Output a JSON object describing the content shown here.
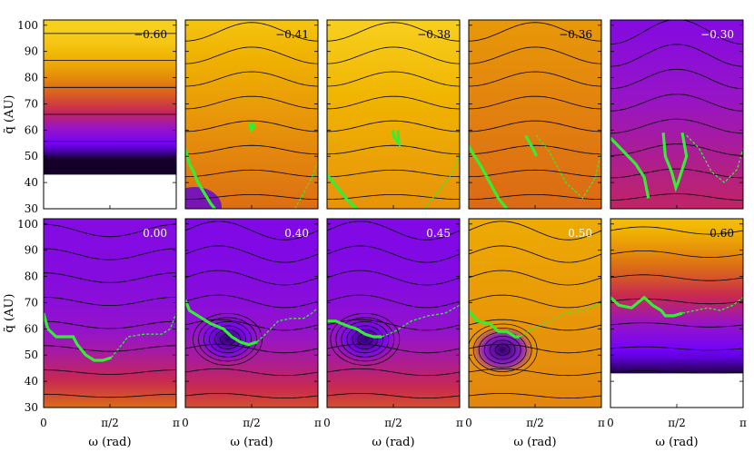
{
  "chart_data": {
    "type": "heatmap",
    "xlabel": "ω (rad)",
    "ylabel": "q̃ (AU)",
    "xticks": [
      "0",
      "π/2",
      "π"
    ],
    "yticks": [
      30,
      40,
      50,
      60,
      70,
      80,
      90,
      100
    ],
    "xlim": [
      0,
      3.1416
    ],
    "ylim": [
      30,
      102
    ],
    "panels": [
      {
        "label": "−0.60",
        "style": "flat",
        "center": 0,
        "qmin": 43,
        "label_color": "#000000",
        "green_solid": [],
        "green_dashed": []
      },
      {
        "label": "−0.41",
        "style": "sym",
        "center": 1.5708,
        "label_color": "#000000",
        "green_solid": [
          [
            0.0,
            53
          ],
          [
            0.1,
            47
          ],
          [
            0.2,
            44
          ],
          [
            0.3,
            40
          ],
          [
            0.45,
            36
          ],
          [
            0.6,
            32
          ],
          [
            0.7,
            30
          ]
        ],
        "green_solid_b": [
          [
            1.52,
            63
          ],
          [
            1.56,
            60
          ],
          [
            1.62,
            61
          ],
          [
            1.6,
            63
          ]
        ],
        "green_dashed": [
          [
            2.6,
            30
          ],
          [
            2.8,
            36
          ],
          [
            3.0,
            42
          ],
          [
            3.14,
            48
          ]
        ]
      },
      {
        "label": "−0.38",
        "style": "sym",
        "center": 1.5708,
        "label_color": "#000000",
        "green_solid": [
          [
            0.0,
            43
          ],
          [
            0.15,
            40
          ],
          [
            0.3,
            37
          ],
          [
            0.5,
            33
          ],
          [
            0.7,
            30
          ]
        ],
        "green_solid_b": [
          [
            1.55,
            60
          ],
          [
            1.6,
            57
          ],
          [
            1.7,
            55
          ],
          [
            1.68,
            60
          ]
        ],
        "green_dashed": [
          [
            2.3,
            30
          ],
          [
            2.6,
            36
          ],
          [
            2.9,
            42
          ],
          [
            3.14,
            50
          ]
        ]
      },
      {
        "label": "−0.36",
        "style": "sym",
        "center": 1.5708,
        "label_color": "#000000",
        "green_solid": [
          [
            0.0,
            54
          ],
          [
            0.1,
            51
          ],
          [
            0.3,
            46
          ],
          [
            0.5,
            40
          ],
          [
            0.7,
            34
          ],
          [
            0.9,
            30
          ]
        ],
        "green_solid_b": [
          [
            1.35,
            58
          ],
          [
            1.45,
            55
          ],
          [
            1.55,
            52
          ],
          [
            1.6,
            50
          ]
        ],
        "green_dashed": [
          [
            1.6,
            58
          ],
          [
            1.9,
            52
          ],
          [
            2.3,
            40
          ],
          [
            2.7,
            34
          ],
          [
            3.0,
            42
          ],
          [
            3.14,
            52
          ]
        ]
      },
      {
        "label": "−0.30",
        "style": "sym",
        "center": 1.5708,
        "label_color": "#ffffff",
        "green_solid": [
          [
            0.0,
            57
          ],
          [
            0.3,
            52
          ],
          [
            0.6,
            47
          ],
          [
            0.8,
            42
          ],
          [
            0.9,
            34
          ]
        ],
        "green_solid_b": [
          [
            1.25,
            59
          ],
          [
            1.3,
            50
          ],
          [
            1.45,
            44
          ],
          [
            1.55,
            38
          ],
          [
            1.6,
            40
          ],
          [
            1.7,
            45
          ],
          [
            1.8,
            50
          ],
          [
            1.7,
            59
          ]
        ],
        "green_dashed": [
          [
            1.8,
            58
          ],
          [
            2.1,
            53
          ],
          [
            2.4,
            44
          ],
          [
            2.7,
            40
          ],
          [
            3.0,
            45
          ],
          [
            3.14,
            53
          ]
        ]
      },
      {
        "label": "0.00",
        "style": "deep",
        "center": 1.5708,
        "label_color": "#ffffff",
        "green_solid": [
          [
            0.0,
            66
          ],
          [
            0.1,
            60
          ],
          [
            0.3,
            57
          ],
          [
            0.7,
            57
          ],
          [
            0.8,
            54
          ],
          [
            1.0,
            50
          ],
          [
            1.2,
            48
          ],
          [
            1.4,
            48
          ],
          [
            1.6,
            49
          ]
        ],
        "green_dashed": [
          [
            1.6,
            49
          ],
          [
            1.8,
            53
          ],
          [
            2.0,
            57
          ],
          [
            2.4,
            58
          ],
          [
            2.8,
            58
          ],
          [
            3.0,
            60
          ],
          [
            3.14,
            66
          ]
        ]
      },
      {
        "label": "0.40",
        "style": "vortex",
        "center": 1.0,
        "label_color": "#ffffff",
        "green_solid": [
          [
            0.0,
            71
          ],
          [
            0.1,
            67
          ],
          [
            0.4,
            64
          ],
          [
            0.6,
            62
          ],
          [
            0.9,
            60
          ],
          [
            1.1,
            57
          ],
          [
            1.3,
            55
          ],
          [
            1.5,
            54
          ],
          [
            1.7,
            55
          ]
        ],
        "green_dashed": [
          [
            1.7,
            55
          ],
          [
            1.9,
            58
          ],
          [
            2.2,
            63
          ],
          [
            2.5,
            64
          ],
          [
            2.8,
            64
          ],
          [
            3.0,
            66
          ],
          [
            3.14,
            68
          ]
        ]
      },
      {
        "label": "0.45",
        "style": "vortex",
        "center": 0.9,
        "label_color": "#ffffff",
        "green_solid": [
          [
            0.0,
            63
          ],
          [
            0.2,
            63
          ],
          [
            0.5,
            61
          ],
          [
            0.7,
            60
          ],
          [
            0.9,
            58
          ],
          [
            1.1,
            57
          ],
          [
            1.3,
            57
          ]
        ],
        "green_dashed": [
          [
            1.3,
            57
          ],
          [
            1.6,
            59
          ],
          [
            2.0,
            63
          ],
          [
            2.4,
            65
          ],
          [
            2.8,
            66
          ],
          [
            3.14,
            69
          ]
        ]
      },
      {
        "label": "0.50",
        "style": "vortex_orange",
        "center": 0.8,
        "label_color": "#ffffff",
        "green_solid": [
          [
            0.0,
            67
          ],
          [
            0.2,
            63
          ],
          [
            0.5,
            62
          ],
          [
            0.7,
            59
          ],
          [
            0.9,
            59
          ],
          [
            1.1,
            57
          ],
          [
            1.2,
            57
          ]
        ],
        "green_dashed": [
          [
            1.2,
            57
          ],
          [
            1.5,
            60
          ],
          [
            1.9,
            63
          ],
          [
            2.3,
            66
          ],
          [
            2.7,
            67
          ],
          [
            3.14,
            70
          ]
        ]
      },
      {
        "label": "0.60",
        "style": "flat_mid",
        "center": 0,
        "qmin": 43,
        "label_color": "#000000",
        "green_solid": [
          [
            0.0,
            72
          ],
          [
            0.2,
            69
          ],
          [
            0.5,
            68
          ],
          [
            0.8,
            72
          ],
          [
            1.0,
            69
          ],
          [
            1.2,
            67
          ],
          [
            1.3,
            65
          ],
          [
            1.5,
            65
          ],
          [
            1.7,
            66
          ]
        ],
        "green_dashed": [
          [
            1.7,
            66
          ],
          [
            2.0,
            67
          ],
          [
            2.3,
            68
          ],
          [
            2.6,
            67
          ],
          [
            2.9,
            69
          ],
          [
            3.14,
            72
          ]
        ]
      }
    ]
  }
}
